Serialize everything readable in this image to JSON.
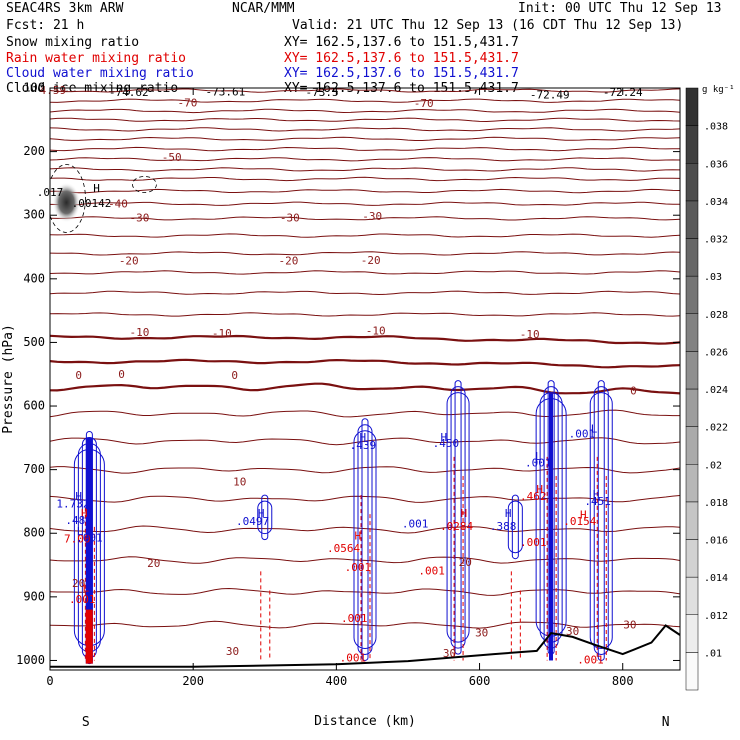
{
  "header": {
    "model": "SEAC4RS   3km ARW",
    "center": "NCAR/MMM",
    "init": "Init: 00 UTC Thu 12 Sep 13",
    "fcst": "Fcst:   21 h",
    "valid": "Valid: 21 UTC Thu 12 Sep 13 (16 CDT Thu 12 Sep 13)",
    "fields": [
      {
        "name": "Snow mixing ratio",
        "xy": "XY=  162.5,137.6 to 151.5,431.7",
        "color": "#000000"
      },
      {
        "name": "Rain water mixing ratio",
        "xy": "XY=  162.5,137.6 to 151.5,431.7",
        "color": "#e00000"
      },
      {
        "name": "Cloud water mixing ratio",
        "xy": "XY=  162.5,137.6 to 151.5,431.7",
        "color": "#1010d0"
      },
      {
        "name": "Cloud ice mixing ratio",
        "xy": "XY=  162.5,137.6 to 151.5,431.7",
        "color": "#000000"
      }
    ]
  },
  "chart_data": {
    "type": "heatmap",
    "xlabel": "Distance (km)",
    "ylabel": "Pressure (hPa)",
    "xlim": [
      0,
      880
    ],
    "ylim": [
      1015,
      100
    ],
    "xticks": [
      0,
      200,
      400,
      600,
      800
    ],
    "yticks": [
      100,
      200,
      300,
      400,
      500,
      600,
      700,
      800,
      900,
      1000
    ],
    "endpoints": {
      "left": "S",
      "right": "N"
    },
    "colorbar": {
      "unit": "g kg⁻¹",
      "levels": [
        ".01",
        ".012",
        ".014",
        ".016",
        ".018",
        ".02",
        ".022",
        ".024",
        ".026",
        ".028",
        ".03",
        ".032",
        ".034",
        ".036",
        ".038"
      ]
    },
    "temperature_contours": [
      {
        "value": -70,
        "p": 104
      },
      {
        "value": -70,
        "p": 120
      },
      {
        "value": -60,
        "p": 136
      },
      {
        "value": -60,
        "p": 150
      },
      {
        "value": -50,
        "p": 165
      },
      {
        "value": -50,
        "p": 180
      },
      {
        "value": -40,
        "p": 196
      },
      {
        "value": -40,
        "p": 212
      },
      {
        "value": -40,
        "p": 228
      },
      {
        "value": -30,
        "p": 243
      },
      {
        "value": -30,
        "p": 262
      },
      {
        "value": -30,
        "p": 282
      },
      {
        "value": -20,
        "p": 305
      },
      {
        "value": -20,
        "p": 332
      },
      {
        "value": -20,
        "p": 360
      },
      {
        "value": -10,
        "p": 390
      },
      {
        "value": -10,
        "p": 422
      },
      {
        "value": -10,
        "p": 456
      },
      {
        "value": 0,
        "p": 492
      },
      {
        "value": 0,
        "p": 530
      },
      {
        "value": 0,
        "p": 570
      },
      {
        "value": 10,
        "p": 612
      },
      {
        "value": 10,
        "p": 655
      },
      {
        "value": 10,
        "p": 700
      },
      {
        "value": 20,
        "p": 746
      },
      {
        "value": 20,
        "p": 794
      },
      {
        "value": 20,
        "p": 842
      },
      {
        "value": 30,
        "p": 892
      },
      {
        "value": 30,
        "p": 944
      }
    ],
    "contour_labels": [
      {
        "text": "4.59",
        "x": 4,
        "p": 105,
        "color": "#8b1a1a"
      },
      {
        "text": "-74.62",
        "x": 110,
        "p": 108,
        "color": "#000000"
      },
      {
        "text": "-73.61",
        "x": 245,
        "p": 107,
        "color": "#000000"
      },
      {
        "text": "-73.5",
        "x": 380,
        "p": 108,
        "color": "#000000"
      },
      {
        "text": "-72.49",
        "x": 698,
        "p": 112,
        "color": "#000000"
      },
      {
        "text": "-72.24",
        "x": 800,
        "p": 108,
        "color": "#000000"
      },
      {
        "text": "-70",
        "x": 192,
        "p": 124,
        "color": "#8b1a1a"
      },
      {
        "text": "-70",
        "x": 522,
        "p": 125,
        "color": "#8b1a1a"
      },
      {
        "text": "-50",
        "x": 170,
        "p": 210,
        "color": "#8b1a1a"
      },
      {
        "text": "-40",
        "x": 95,
        "p": 283,
        "color": "#8b1a1a"
      },
      {
        "text": "-30",
        "x": 125,
        "p": 305,
        "color": "#8b1a1a"
      },
      {
        "text": "-30",
        "x": 335,
        "p": 305,
        "color": "#8b1a1a"
      },
      {
        "text": "-30",
        "x": 450,
        "p": 303,
        "color": "#8b1a1a"
      },
      {
        "text": "-20",
        "x": 110,
        "p": 373,
        "color": "#8b1a1a"
      },
      {
        "text": "-20",
        "x": 333,
        "p": 373,
        "color": "#8b1a1a"
      },
      {
        "text": "-20",
        "x": 448,
        "p": 372,
        "color": "#8b1a1a"
      },
      {
        "text": "-10",
        "x": 125,
        "p": 485,
        "color": "#8b1a1a"
      },
      {
        "text": "-10",
        "x": 240,
        "p": 487,
        "color": "#8b1a1a"
      },
      {
        "text": "-10",
        "x": 455,
        "p": 483,
        "color": "#8b1a1a"
      },
      {
        "text": "-10",
        "x": 670,
        "p": 488,
        "color": "#8b1a1a"
      },
      {
        "text": "0",
        "x": 40,
        "p": 553,
        "color": "#8b1a1a"
      },
      {
        "text": "0",
        "x": 100,
        "p": 551,
        "color": "#8b1a1a"
      },
      {
        "text": "0",
        "x": 258,
        "p": 553,
        "color": "#8b1a1a"
      },
      {
        "text": "0",
        "x": 815,
        "p": 577,
        "color": "#8b1a1a"
      },
      {
        "text": "10",
        "x": 265,
        "p": 720,
        "color": "#8b1a1a"
      },
      {
        "text": "20",
        "x": 145,
        "p": 848,
        "color": "#8b1a1a"
      },
      {
        "text": "20",
        "x": 40,
        "p": 880,
        "color": "#8b1a1a"
      },
      {
        "text": "20",
        "x": 580,
        "p": 847,
        "color": "#8b1a1a"
      },
      {
        "text": "30",
        "x": 603,
        "p": 958,
        "color": "#8b1a1a"
      },
      {
        "text": "30",
        "x": 730,
        "p": 955,
        "color": "#8b1a1a"
      },
      {
        "text": "30",
        "x": 810,
        "p": 945,
        "color": "#8b1a1a"
      },
      {
        "text": "30",
        "x": 255,
        "p": 987,
        "color": "#8b1a1a"
      },
      {
        "text": "30",
        "x": 558,
        "p": 990,
        "color": "#8b1a1a"
      }
    ],
    "ice_feature": {
      "x": 23,
      "p": 280,
      "max_gkg": 0.038
    },
    "snow_labels": [
      {
        "text": ".017",
        "x": 0,
        "p": 265
      },
      {
        "text": "H",
        "x": 65,
        "p": 259
      },
      {
        "text": ".00142",
        "x": 58,
        "p": 282
      }
    ],
    "rain_labels": [
      {
        "text": "H",
        "x": 48,
        "p": 770
      },
      {
        "text": "7.00",
        "x": 38,
        "p": 810
      },
      {
        "text": "L",
        "x": 50,
        "p": 887
      },
      {
        "text": ".001",
        "x": 45,
        "p": 905
      },
      {
        "text": "H",
        "x": 430,
        "p": 805
      },
      {
        "text": ".0564",
        "x": 410,
        "p": 825
      },
      {
        "text": ".001",
        "x": 430,
        "p": 855
      },
      {
        "text": ".001",
        "x": 425,
        "p": 935
      },
      {
        "text": ".001",
        "x": 423,
        "p": 997
      },
      {
        "text": "H",
        "x": 578,
        "p": 770
      },
      {
        "text": ".0284",
        "x": 568,
        "p": 790
      },
      {
        "text": ".001",
        "x": 533,
        "p": 860
      },
      {
        "text": "H",
        "x": 684,
        "p": 732
      },
      {
        "text": ".462",
        "x": 675,
        "p": 743
      },
      {
        "text": ".001",
        "x": 675,
        "p": 815
      },
      {
        "text": "H",
        "x": 745,
        "p": 772
      },
      {
        "text": ".0154",
        "x": 740,
        "p": 782
      },
      {
        "text": ".001",
        "x": 755,
        "p": 1000
      }
    ],
    "cloud_labels": [
      {
        "text": "H",
        "x": 40,
        "p": 743
      },
      {
        "text": "1.732",
        "x": 32,
        "p": 755
      },
      {
        "text": ".481",
        "x": 40,
        "p": 781
      },
      {
        "text": "L",
        "x": 42,
        "p": 798
      },
      {
        "text": ".001",
        "x": 55,
        "p": 808
      },
      {
        "text": "H",
        "x": 295,
        "p": 770
      },
      {
        "text": ".0497",
        "x": 283,
        "p": 782
      },
      {
        "text": "H",
        "x": 437,
        "p": 650
      },
      {
        "text": ".439",
        "x": 437,
        "p": 663
      },
      {
        "text": "H",
        "x": 550,
        "p": 650
      },
      {
        "text": ".450",
        "x": 553,
        "p": 660
      },
      {
        "text": ".001",
        "x": 510,
        "p": 786
      },
      {
        "text": "H",
        "x": 640,
        "p": 770
      },
      {
        "text": ".388",
        "x": 633,
        "p": 790
      },
      {
        "text": "L",
        "x": 682,
        "p": 680
      },
      {
        "text": ".001",
        "x": 682,
        "p": 690
      },
      {
        "text": "L",
        "x": 760,
        "p": 637
      },
      {
        "text": ".001",
        "x": 743,
        "p": 645
      },
      {
        "text": "H",
        "x": 763,
        "p": 740
      },
      {
        "text": ".451",
        "x": 765,
        "p": 751
      }
    ],
    "terrain_surface": [
      [
        0,
        1010
      ],
      [
        200,
        1010
      ],
      [
        400,
        1006
      ],
      [
        500,
        1001
      ],
      [
        620,
        990
      ],
      [
        680,
        985
      ],
      [
        700,
        957
      ],
      [
        730,
        963
      ],
      [
        760,
        975
      ],
      [
        800,
        990
      ],
      [
        840,
        972
      ],
      [
        860,
        945
      ],
      [
        880,
        960
      ]
    ]
  }
}
